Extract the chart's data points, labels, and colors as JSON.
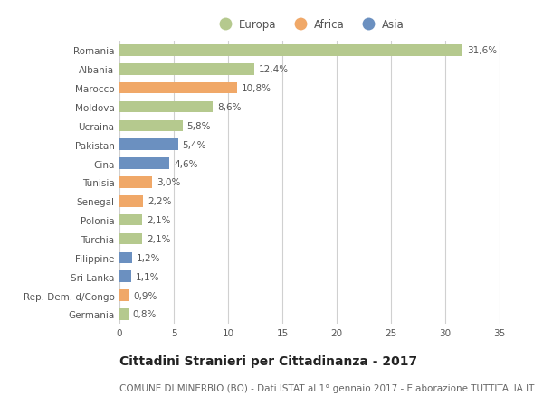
{
  "categories": [
    "Romania",
    "Albania",
    "Marocco",
    "Moldova",
    "Ucraina",
    "Pakistan",
    "Cina",
    "Tunisia",
    "Senegal",
    "Polonia",
    "Turchia",
    "Filippine",
    "Sri Lanka",
    "Rep. Dem. d/Congo",
    "Germania"
  ],
  "values": [
    31.6,
    12.4,
    10.8,
    8.6,
    5.8,
    5.4,
    4.6,
    3.0,
    2.2,
    2.1,
    2.1,
    1.2,
    1.1,
    0.9,
    0.8
  ],
  "labels": [
    "31,6%",
    "12,4%",
    "10,8%",
    "8,6%",
    "5,8%",
    "5,4%",
    "4,6%",
    "3,0%",
    "2,2%",
    "2,1%",
    "2,1%",
    "1,2%",
    "1,1%",
    "0,9%",
    "0,8%"
  ],
  "continents": [
    "Europa",
    "Europa",
    "Africa",
    "Europa",
    "Europa",
    "Asia",
    "Asia",
    "Africa",
    "Africa",
    "Europa",
    "Europa",
    "Asia",
    "Asia",
    "Africa",
    "Europa"
  ],
  "colors": {
    "Europa": "#b5c98e",
    "Africa": "#f0a868",
    "Asia": "#6b90c0"
  },
  "legend_labels": [
    "Europa",
    "Africa",
    "Asia"
  ],
  "legend_colors": [
    "#b5c98e",
    "#f0a868",
    "#6b90c0"
  ],
  "xlim": [
    0,
    35
  ],
  "xticks": [
    0,
    5,
    10,
    15,
    20,
    25,
    30,
    35
  ],
  "title": "Cittadini Stranieri per Cittadinanza - 2017",
  "subtitle": "COMUNE DI MINERBIO (BO) - Dati ISTAT al 1° gennaio 2017 - Elaborazione TUTTITALIA.IT",
  "background_color": "#ffffff",
  "grid_color": "#d0d0d0",
  "bar_height": 0.6,
  "title_fontsize": 10,
  "subtitle_fontsize": 7.5,
  "label_fontsize": 7.5,
  "tick_fontsize": 7.5,
  "legend_fontsize": 8.5
}
